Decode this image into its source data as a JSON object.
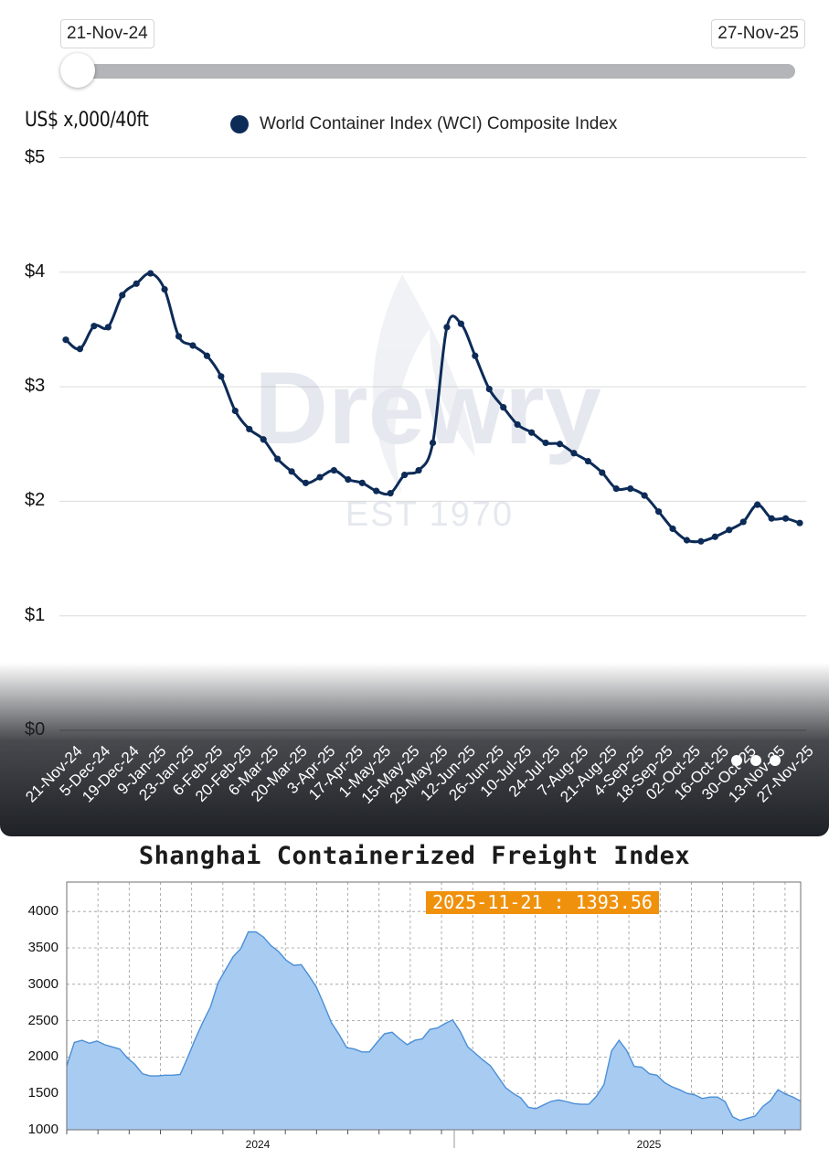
{
  "top_panel": {
    "range_start": "21-Nov-24",
    "range_end": "27-Nov-25",
    "unit_label": "US$ x,000/40ft",
    "legend_label": "World Container Index (WCI) Composite Index",
    "watermark_brand": "Drewry",
    "watermark_tagline": "EST 1970"
  },
  "bottom_panel": {
    "title": "Shanghai Containerized Freight Index",
    "badge": "2025-11-21 : 1393.56"
  },
  "colors": {
    "wci_line": "#0d2b57",
    "scfi_fill": "#a8cbf2",
    "scfi_line": "#4a8fd6",
    "badge": "#f0910c"
  },
  "chart_data": [
    {
      "type": "line",
      "title": "",
      "ylabel": "US$ x,000/40ft",
      "ylim": [
        0,
        5
      ],
      "y_ticks": [
        "$0",
        "$1",
        "$2",
        "$3",
        "$4",
        "$5"
      ],
      "grid": true,
      "legend": "top-left",
      "x_tick_labels": [
        "21-Nov-24",
        "5-Dec-24",
        "19-Dec-24",
        "9-Jan-25",
        "23-Jan-25",
        "6-Feb-25",
        "20-Feb-25",
        "6-Mar-25",
        "20-Mar-25",
        "3-Apr-25",
        "17-Apr-25",
        "1-May-25",
        "15-May-25",
        "29-May-25",
        "12-Jun-25",
        "26-Jun-25",
        "10-Jul-25",
        "24-Jul-25",
        "7-Aug-25",
        "21-Aug-25",
        "4-Sep-25",
        "18-Sep-25",
        "02-Oct-25",
        "16-Oct-25",
        "30-Oct-25",
        "13-Nov-25",
        "27-Nov-25"
      ],
      "series": [
        {
          "name": "World Container Index (WCI) Composite Index",
          "values": [
            3.41,
            3.33,
            3.53,
            3.52,
            3.8,
            3.9,
            3.99,
            3.85,
            3.44,
            3.36,
            3.27,
            3.09,
            2.79,
            2.63,
            2.54,
            2.37,
            2.26,
            2.16,
            2.21,
            2.27,
            2.19,
            2.16,
            2.09,
            2.07,
            2.23,
            2.27,
            2.51,
            3.52,
            3.55,
            3.27,
            2.98,
            2.82,
            2.67,
            2.6,
            2.51,
            2.5,
            2.42,
            2.35,
            2.25,
            2.11,
            2.11,
            2.05,
            1.91,
            1.76,
            1.66,
            1.65,
            1.69,
            1.75,
            1.82,
            1.97,
            1.85,
            1.85,
            1.81
          ]
        }
      ]
    },
    {
      "type": "area",
      "title": "Shanghai Containerized Freight Index",
      "ylim": [
        1000,
        4300
      ],
      "y_ticks": [
        1000,
        1500,
        2000,
        2500,
        3000,
        3500,
        4000
      ],
      "x_year_labels": [
        "2024",
        "2025"
      ],
      "grid": true,
      "annotation": "2025-11-21 : 1393.56",
      "series": [
        {
          "name": "",
          "values": [
            1880,
            2200,
            2230,
            2190,
            2220,
            2170,
            2140,
            2110,
            1990,
            1900,
            1770,
            1740,
            1740,
            1750,
            1750,
            1760,
            2000,
            2250,
            2480,
            2690,
            3020,
            3200,
            3380,
            3490,
            3720,
            3720,
            3650,
            3530,
            3450,
            3330,
            3260,
            3270,
            3120,
            2960,
            2720,
            2470,
            2310,
            2130,
            2110,
            2070,
            2070,
            2200,
            2320,
            2340,
            2250,
            2170,
            2230,
            2250,
            2380,
            2400,
            2460,
            2510,
            2350,
            2140,
            2050,
            1960,
            1880,
            1730,
            1580,
            1500,
            1440,
            1310,
            1290,
            1340,
            1390,
            1410,
            1390,
            1360,
            1350,
            1350,
            1460,
            1620,
            2080,
            2230,
            2090,
            1870,
            1860,
            1770,
            1750,
            1650,
            1590,
            1550,
            1500,
            1480,
            1430,
            1450,
            1450,
            1390,
            1180,
            1130,
            1160,
            1190,
            1320,
            1400,
            1550,
            1490,
            1450,
            1393.56
          ]
        }
      ]
    }
  ]
}
